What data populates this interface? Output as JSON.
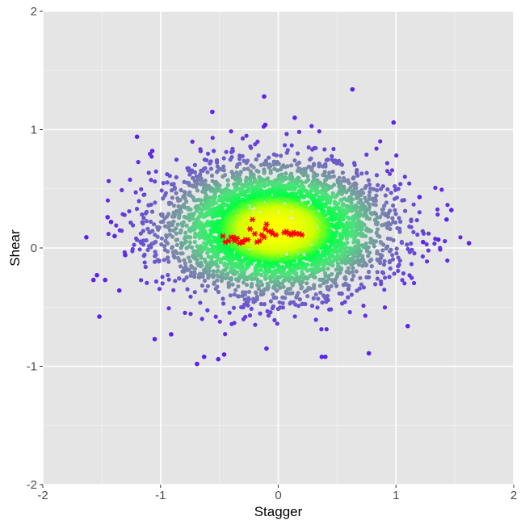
{
  "chart_data": {
    "type": "scatter",
    "title": "",
    "xlabel": "Stagger",
    "ylabel": "Shear",
    "xlim": [
      -2,
      2
    ],
    "ylim": [
      -2,
      2
    ],
    "x_ticks": [
      -2,
      -1,
      0,
      1,
      2
    ],
    "y_ticks": [
      -2,
      -1,
      0,
      1,
      2
    ],
    "x_tick_labels": [
      "-2",
      "-1",
      "0",
      "1",
      "2"
    ],
    "y_tick_labels": [
      "-2",
      "-1",
      "0",
      "1",
      "2"
    ],
    "grid": true,
    "background": "#e5e5e5",
    "grid_color": "#ffffff",
    "density_colors": [
      "#5a22f0",
      "#7c8ca8",
      "#4de27a",
      "#00ff44",
      "#cfff00",
      "#ffff00"
    ],
    "cloud": {
      "center": [
        -0.02,
        0.16
      ],
      "spread": [
        0.48,
        0.28
      ],
      "point_count": 4200
    },
    "outliers": [
      [
        -1.63,
        0.09
      ],
      [
        -1.57,
        -0.27
      ],
      [
        -1.54,
        -0.23
      ],
      [
        -1.52,
        -0.58
      ],
      [
        -1.47,
        -0.27
      ],
      [
        -1.45,
        0.26
      ],
      [
        -1.42,
        0.22
      ],
      [
        -1.39,
        0.1
      ],
      [
        -1.35,
        -0.36
      ],
      [
        -1.3,
        -0.06
      ],
      [
        -1.2,
        0.94
      ],
      [
        -1.07,
        0.82
      ],
      [
        -1.05,
        -0.77
      ],
      [
        -0.91,
        -0.73
      ],
      [
        -0.69,
        -0.98
      ],
      [
        -0.63,
        -0.92
      ],
      [
        -0.56,
        1.15
      ],
      [
        -0.51,
        -0.94
      ],
      [
        -0.46,
        -0.9
      ],
      [
        -0.11,
        1.04
      ],
      [
        -0.12,
        1.28
      ],
      [
        -0.1,
        -0.85
      ],
      [
        0.14,
        1.1
      ],
      [
        0.37,
        -0.92
      ],
      [
        0.4,
        -0.92
      ],
      [
        0.63,
        1.34
      ],
      [
        0.77,
        -0.89
      ],
      [
        0.98,
        1.06
      ],
      [
        1.1,
        -0.66
      ],
      [
        1.2,
        0.43
      ],
      [
        1.23,
        0.05
      ],
      [
        1.36,
        0.07
      ],
      [
        1.43,
        0.24
      ],
      [
        1.47,
        0.32
      ],
      [
        1.62,
        0.04
      ]
    ],
    "highlight_series": {
      "marker": "asterisk",
      "color": "#ff0000",
      "points": [
        [
          -0.47,
          0.1
        ],
        [
          -0.45,
          0.05
        ],
        [
          -0.42,
          0.06
        ],
        [
          -0.4,
          0.09
        ],
        [
          -0.38,
          0.09
        ],
        [
          -0.37,
          0.06
        ],
        [
          -0.35,
          0.08
        ],
        [
          -0.33,
          0.04
        ],
        [
          -0.31,
          0.05
        ],
        [
          -0.3,
          0.05
        ],
        [
          -0.28,
          0.07
        ],
        [
          -0.26,
          0.07
        ],
        [
          -0.24,
          0.16
        ],
        [
          -0.22,
          0.24
        ],
        [
          -0.2,
          0.12
        ],
        [
          -0.18,
          0.05
        ],
        [
          -0.16,
          0.06
        ],
        [
          -0.14,
          0.11
        ],
        [
          -0.12,
          0.09
        ],
        [
          -0.11,
          0.16
        ],
        [
          -0.1,
          0.2
        ],
        [
          -0.08,
          0.14
        ],
        [
          -0.06,
          0.14
        ],
        [
          -0.05,
          0.12
        ],
        [
          -0.02,
          0.11
        ],
        [
          0.05,
          0.13
        ],
        [
          0.07,
          0.14
        ],
        [
          0.09,
          0.12
        ],
        [
          0.11,
          0.11
        ],
        [
          0.13,
          0.13
        ],
        [
          0.15,
          0.12
        ],
        [
          0.18,
          0.12
        ],
        [
          0.2,
          0.11
        ]
      ]
    }
  }
}
